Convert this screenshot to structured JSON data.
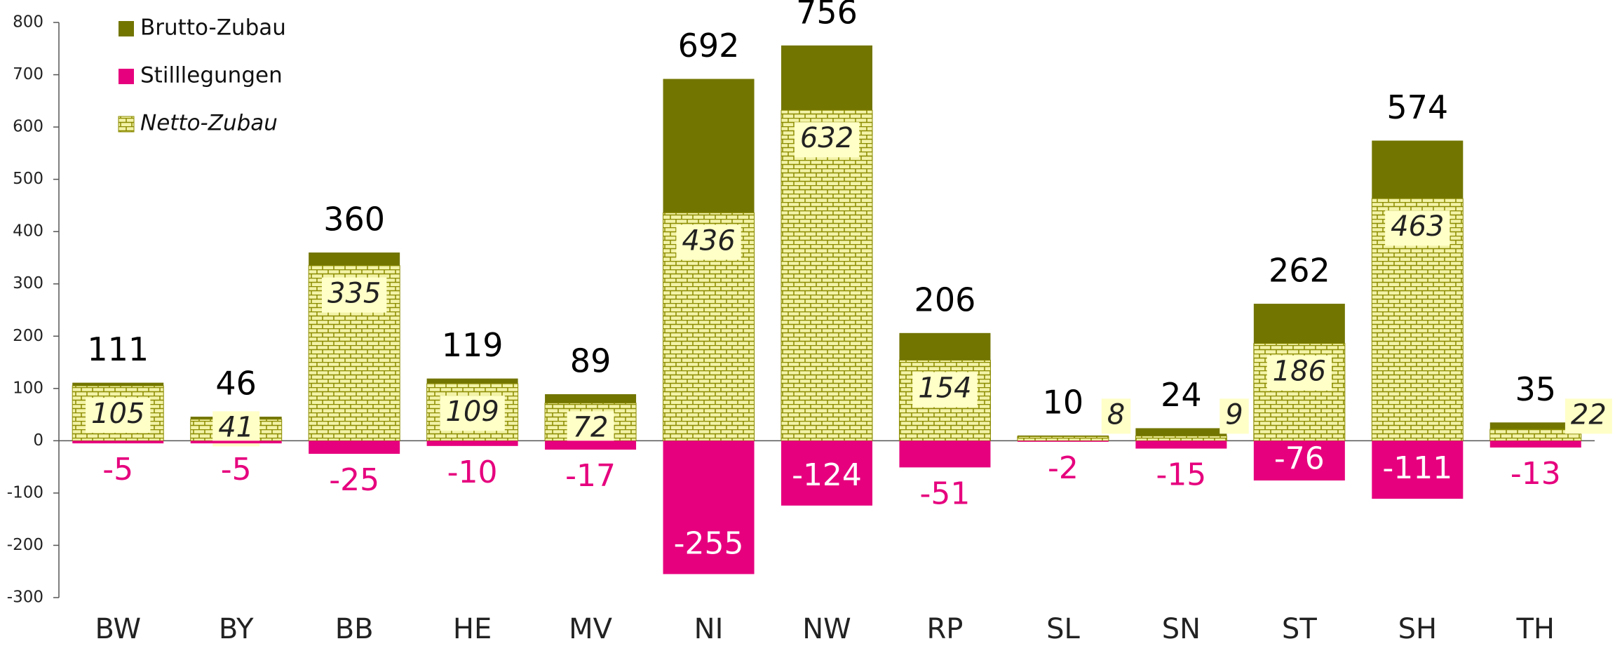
{
  "chart_data": {
    "type": "bar",
    "categories": [
      "BW",
      "BY",
      "BB",
      "HE",
      "MV",
      "NI",
      "NW",
      "RP",
      "SL",
      "SN",
      "ST",
      "SH",
      "TH"
    ],
    "series": [
      {
        "name": "Brutto-Zubau",
        "color": "#727500",
        "values": [
          111,
          46,
          360,
          119,
          89,
          692,
          756,
          206,
          10,
          24,
          262,
          574,
          35
        ]
      },
      {
        "name": "Stilllegungen",
        "color": "#e6007e",
        "values": [
          -5,
          -5,
          -25,
          -10,
          -17,
          -255,
          -124,
          -51,
          -2,
          -15,
          -76,
          -111,
          -13
        ]
      },
      {
        "name": "Netto-Zubau",
        "color": "#f3f3a8",
        "values": [
          105,
          41,
          335,
          109,
          72,
          436,
          632,
          154,
          8,
          9,
          186,
          463,
          22
        ]
      }
    ],
    "ylim": [
      -300,
      800
    ],
    "yticks": [
      -300,
      -200,
      -100,
      0,
      100,
      200,
      300,
      400,
      500,
      600,
      700,
      800
    ],
    "grid": false,
    "legend": "top-left"
  }
}
